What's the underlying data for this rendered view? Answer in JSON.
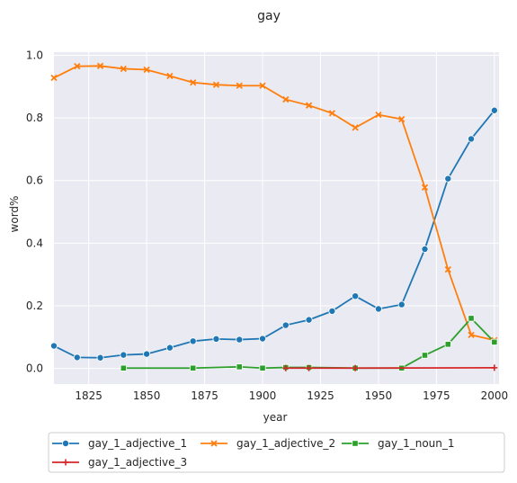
{
  "chart_data": {
    "type": "line",
    "title": "gay",
    "xlabel": "year",
    "ylabel": "word%",
    "xlim": [
      1810,
      2002
    ],
    "ylim": [
      -0.05,
      1.01
    ],
    "x_ticks": [
      1825,
      1850,
      1875,
      1900,
      1925,
      1950,
      1975,
      2000
    ],
    "y_ticks": [
      0.0,
      0.2,
      0.4,
      0.6,
      0.8,
      1.0
    ],
    "x_tick_labels": [
      "1825",
      "1850",
      "1875",
      "1900",
      "1925",
      "1950",
      "1975",
      "2000"
    ],
    "y_tick_labels": [
      "0.0",
      "0.2",
      "0.4",
      "0.6",
      "0.8",
      "1.0"
    ],
    "grid": true,
    "legend_position": "bottom",
    "series": [
      {
        "name": "gay_1_adjective_1",
        "color": "#1f77b4",
        "marker": "circle",
        "x": [
          1810,
          1820,
          1830,
          1840,
          1850,
          1860,
          1870,
          1880,
          1890,
          1900,
          1910,
          1920,
          1930,
          1940,
          1950,
          1960,
          1970,
          1980,
          1990,
          2000
        ],
        "y": [
          0.072,
          0.035,
          0.034,
          0.043,
          0.046,
          0.066,
          0.087,
          0.094,
          0.092,
          0.095,
          0.138,
          0.155,
          0.183,
          0.231,
          0.19,
          0.204,
          0.381,
          0.606,
          0.733,
          0.824
        ]
      },
      {
        "name": "gay_1_adjective_2",
        "color": "#ff7f0e",
        "marker": "x",
        "x": [
          1810,
          1820,
          1830,
          1840,
          1850,
          1860,
          1870,
          1880,
          1890,
          1900,
          1910,
          1920,
          1930,
          1940,
          1950,
          1960,
          1970,
          1980,
          1990,
          2000
        ],
        "y": [
          0.928,
          0.965,
          0.966,
          0.957,
          0.954,
          0.934,
          0.913,
          0.906,
          0.903,
          0.903,
          0.859,
          0.84,
          0.815,
          0.769,
          0.81,
          0.796,
          0.578,
          0.316,
          0.107,
          0.09
        ]
      },
      {
        "name": "gay_1_noun_1",
        "color": "#2ca02c",
        "marker": "square",
        "x": [
          1840,
          1870,
          1890,
          1900,
          1910,
          1920,
          1940,
          1960,
          1970,
          1980,
          1990,
          2000
        ],
        "y": [
          0.001,
          0.001,
          0.005,
          0.001,
          0.003,
          0.003,
          0.001,
          0.001,
          0.042,
          0.077,
          0.16,
          0.084
        ]
      },
      {
        "name": "gay_1_adjective_3",
        "color": "#d62728",
        "marker": "plus",
        "x": [
          1910,
          1920,
          1940,
          2000
        ],
        "y": [
          0.001,
          0.001,
          0.001,
          0.002
        ]
      }
    ]
  }
}
